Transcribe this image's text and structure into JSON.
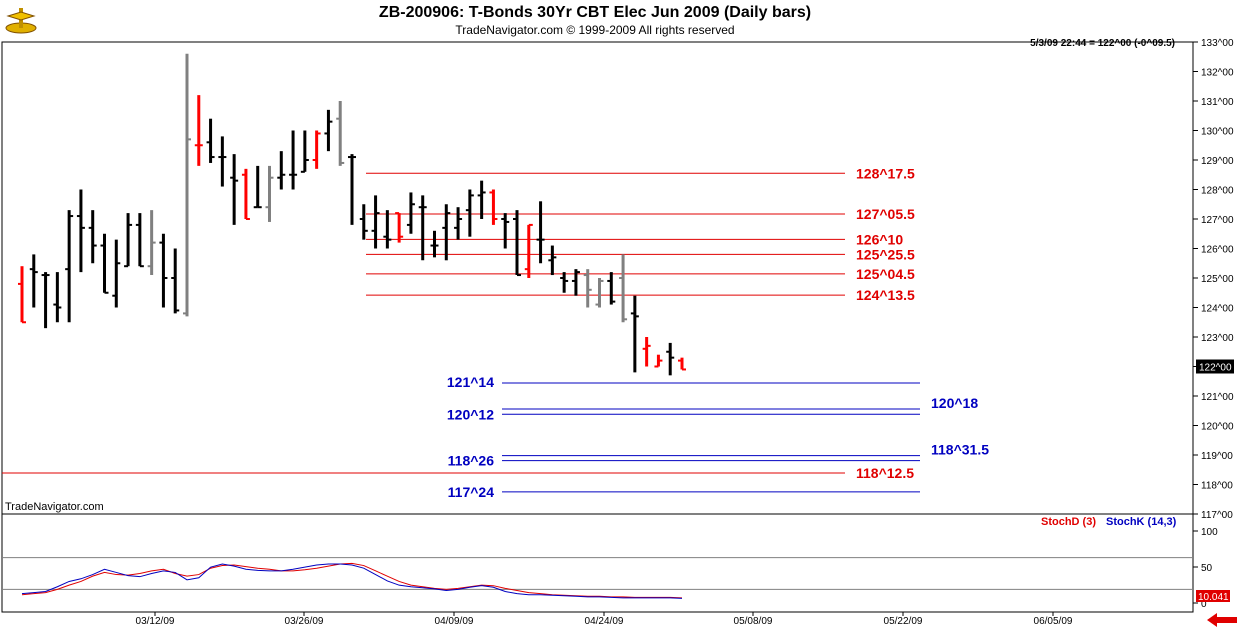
{
  "header": {
    "title": "ZB-200906:  T-Bonds 30Yr CBT Elec Jun 2009  (Daily bars)",
    "subtitle": "TradeNavigator.com © 1999-2009 All rights reserved",
    "info": "5/3/09 22:44 = 122^00 (-0^09.5)"
  },
  "watermark": "TradeNavigator.com",
  "colors": {
    "up": "#000000",
    "down": "#ff0000",
    "neutral": "#808080",
    "red_line": "#e00000",
    "blue_line": "#0000c0"
  },
  "chart_data": {
    "type": "ohlc",
    "price_axis": {
      "min": 117,
      "max": 133,
      "ticks": [
        "133^00",
        "132^00",
        "131^00",
        "130^00",
        "129^00",
        "128^00",
        "127^00",
        "126^00",
        "125^00",
        "124^00",
        "123^00",
        "122^00",
        "121^00",
        "120^00",
        "119^00",
        "118^00",
        "117^00"
      ],
      "current": "122^00"
    },
    "x_ticks": [
      "03/12/09",
      "03/26/09",
      "04/09/09",
      "04/24/09",
      "05/08/09",
      "05/22/09",
      "06/05/09"
    ],
    "bars": [
      {
        "o": 124.8,
        "h": 125.4,
        "l": 123.5,
        "c": 123.5,
        "col": "down"
      },
      {
        "o": 125.3,
        "h": 125.8,
        "l": 124.0,
        "c": 125.2,
        "col": "up"
      },
      {
        "o": 125.1,
        "h": 125.2,
        "l": 123.3,
        "c": 125.1,
        "col": "up"
      },
      {
        "o": 124.1,
        "h": 125.2,
        "l": 123.5,
        "c": 124.0,
        "col": "up"
      },
      {
        "o": 125.3,
        "h": 127.3,
        "l": 123.5,
        "c": 127.1,
        "col": "up"
      },
      {
        "o": 127.1,
        "h": 128.0,
        "l": 125.2,
        "c": 126.7,
        "col": "up"
      },
      {
        "o": 126.7,
        "h": 127.3,
        "l": 125.5,
        "c": 126.1,
        "col": "up"
      },
      {
        "o": 126.1,
        "h": 126.5,
        "l": 124.5,
        "c": 124.5,
        "col": "up"
      },
      {
        "o": 124.4,
        "h": 126.3,
        "l": 124.0,
        "c": 125.5,
        "col": "up"
      },
      {
        "o": 125.4,
        "h": 127.2,
        "l": 125.4,
        "c": 126.8,
        "col": "up"
      },
      {
        "o": 126.8,
        "h": 127.2,
        "l": 125.4,
        "c": 125.4,
        "col": "up"
      },
      {
        "o": 125.4,
        "h": 127.3,
        "l": 125.1,
        "c": 126.2,
        "col": "neutral"
      },
      {
        "o": 126.2,
        "h": 126.5,
        "l": 124.0,
        "c": 125.0,
        "col": "up"
      },
      {
        "o": 125.0,
        "h": 126.0,
        "l": 123.8,
        "c": 123.9,
        "col": "up"
      },
      {
        "o": 123.8,
        "h": 132.6,
        "l": 123.7,
        "c": 129.7,
        "col": "neutral"
      },
      {
        "o": 129.5,
        "h": 131.2,
        "l": 128.8,
        "c": 129.5,
        "col": "down"
      },
      {
        "o": 129.6,
        "h": 130.4,
        "l": 128.9,
        "c": 129.1,
        "col": "up"
      },
      {
        "o": 129.1,
        "h": 129.8,
        "l": 128.1,
        "c": 129.1,
        "col": "up"
      },
      {
        "o": 128.4,
        "h": 129.2,
        "l": 126.8,
        "c": 128.3,
        "col": "up"
      },
      {
        "o": 128.5,
        "h": 128.7,
        "l": 127.0,
        "c": 127.0,
        "col": "down"
      },
      {
        "o": 127.4,
        "h": 128.8,
        "l": 127.4,
        "c": 127.4,
        "col": "up"
      },
      {
        "o": 127.4,
        "h": 128.8,
        "l": 126.9,
        "c": 128.4,
        "col": "neutral"
      },
      {
        "o": 128.4,
        "h": 129.3,
        "l": 128.0,
        "c": 128.5,
        "col": "up"
      },
      {
        "o": 128.5,
        "h": 130.0,
        "l": 128.0,
        "c": 128.5,
        "col": "up"
      },
      {
        "o": 128.6,
        "h": 130.0,
        "l": 128.6,
        "c": 129.0,
        "col": "up"
      },
      {
        "o": 129.0,
        "h": 130.0,
        "l": 128.7,
        "c": 129.9,
        "col": "down"
      },
      {
        "o": 129.9,
        "h": 130.7,
        "l": 129.3,
        "c": 130.3,
        "col": "up"
      },
      {
        "o": 130.4,
        "h": 131.0,
        "l": 128.8,
        "c": 128.9,
        "col": "neutral"
      },
      {
        "o": 129.1,
        "h": 129.2,
        "l": 126.8,
        "c": 129.1,
        "col": "up"
      },
      {
        "o": 127.0,
        "h": 127.5,
        "l": 126.3,
        "c": 126.6,
        "col": "up"
      },
      {
        "o": 126.6,
        "h": 127.8,
        "l": 126.0,
        "c": 127.2,
        "col": "up"
      },
      {
        "o": 126.4,
        "h": 127.3,
        "l": 126.0,
        "c": 126.3,
        "col": "up"
      },
      {
        "o": 127.2,
        "h": 127.2,
        "l": 126.2,
        "c": 126.4,
        "col": "down"
      },
      {
        "o": 126.8,
        "h": 127.9,
        "l": 126.5,
        "c": 127.5,
        "col": "up"
      },
      {
        "o": 127.4,
        "h": 127.8,
        "l": 125.6,
        "c": 127.4,
        "col": "up"
      },
      {
        "o": 126.1,
        "h": 126.6,
        "l": 125.7,
        "c": 126.1,
        "col": "up"
      },
      {
        "o": 126.7,
        "h": 127.5,
        "l": 125.6,
        "c": 127.2,
        "col": "up"
      },
      {
        "o": 126.7,
        "h": 127.4,
        "l": 126.3,
        "c": 127.0,
        "col": "up"
      },
      {
        "o": 127.3,
        "h": 128.0,
        "l": 126.4,
        "c": 127.8,
        "col": "up"
      },
      {
        "o": 127.8,
        "h": 128.3,
        "l": 127.0,
        "c": 127.9,
        "col": "up"
      },
      {
        "o": 127.9,
        "h": 128.0,
        "l": 126.8,
        "c": 127.0,
        "col": "down"
      },
      {
        "o": 127.0,
        "h": 127.2,
        "l": 126.0,
        "c": 126.9,
        "col": "up"
      },
      {
        "o": 127.0,
        "h": 127.3,
        "l": 125.1,
        "c": 125.1,
        "col": "up"
      },
      {
        "o": 125.3,
        "h": 126.8,
        "l": 125.0,
        "c": 126.8,
        "col": "down"
      },
      {
        "o": 126.3,
        "h": 127.6,
        "l": 125.5,
        "c": 126.3,
        "col": "up"
      },
      {
        "o": 125.6,
        "h": 126.1,
        "l": 125.1,
        "c": 125.7,
        "col": "up"
      },
      {
        "o": 125.0,
        "h": 125.2,
        "l": 124.5,
        "c": 124.9,
        "col": "up"
      },
      {
        "o": 124.9,
        "h": 125.3,
        "l": 124.4,
        "c": 125.2,
        "col": "up"
      },
      {
        "o": 125.1,
        "h": 125.3,
        "l": 124.0,
        "c": 124.6,
        "col": "neutral"
      },
      {
        "o": 124.1,
        "h": 125.0,
        "l": 124.0,
        "c": 124.9,
        "col": "neutral"
      },
      {
        "o": 124.9,
        "h": 125.2,
        "l": 124.1,
        "c": 124.2,
        "col": "up"
      },
      {
        "o": 125.0,
        "h": 125.8,
        "l": 123.5,
        "c": 123.6,
        "col": "neutral"
      },
      {
        "o": 123.8,
        "h": 124.4,
        "l": 121.8,
        "c": 123.7,
        "col": "up"
      },
      {
        "o": 122.6,
        "h": 123.0,
        "l": 122.0,
        "c": 122.7,
        "col": "down"
      },
      {
        "o": 122.0,
        "h": 122.4,
        "l": 122.0,
        "c": 122.2,
        "col": "down"
      },
      {
        "o": 122.5,
        "h": 122.8,
        "l": 121.7,
        "c": 122.3,
        "col": "up"
      },
      {
        "o": 122.2,
        "h": 122.3,
        "l": 121.9,
        "c": 121.9,
        "col": "down"
      }
    ],
    "levels": [
      {
        "price": 128.55,
        "label": "128^17.5",
        "color": "red",
        "x_from": 0.2,
        "x_to": 0.66,
        "label_side": "right"
      },
      {
        "price": 127.17,
        "label": "127^05.5",
        "color": "red",
        "x_from": 0.2,
        "x_to": 0.66,
        "label_side": "right"
      },
      {
        "price": 126.31,
        "label": "126^10",
        "color": "red",
        "x_from": 0.2,
        "x_to": 0.66,
        "label_side": "right"
      },
      {
        "price": 125.8,
        "label": "125^25.5",
        "color": "red",
        "x_from": 0.2,
        "x_to": 0.66,
        "label_side": "right"
      },
      {
        "price": 125.14,
        "label": "125^04.5",
        "color": "red",
        "x_from": 0.2,
        "x_to": 0.66,
        "label_side": "right"
      },
      {
        "price": 124.42,
        "label": "124^13.5",
        "color": "red",
        "x_from": 0.2,
        "x_to": 0.66,
        "label_side": "right"
      },
      {
        "price": 121.44,
        "label": "121^14",
        "color": "blue",
        "x_from": 0.3,
        "x_to": 0.8,
        "label_side": "left"
      },
      {
        "price": 120.56,
        "label": "120^18",
        "color": "blue",
        "x_from": 0.3,
        "x_to": 0.8,
        "label_side": "rightfar"
      },
      {
        "price": 120.38,
        "label": "120^12",
        "color": "blue",
        "x_from": 0.3,
        "x_to": 0.8,
        "label_side": "left"
      },
      {
        "price": 118.98,
        "label": "118^31.5",
        "color": "blue",
        "x_from": 0.3,
        "x_to": 0.8,
        "label_side": "rightfar"
      },
      {
        "price": 118.81,
        "label": "118^26",
        "color": "blue",
        "x_from": 0.3,
        "x_to": 0.8,
        "label_side": "left"
      },
      {
        "price": 118.39,
        "label": "118^12.5",
        "color": "red",
        "x_from": 0.0,
        "x_to": 0.66,
        "label_side": "right"
      },
      {
        "price": 117.75,
        "label": "117^24",
        "color": "blue",
        "x_from": 0.3,
        "x_to": 0.8,
        "label_side": "left"
      }
    ],
    "stoch": {
      "legend_d": "StochD (3)",
      "legend_k": "StochK (14,3)",
      "ticks": [
        "100",
        "50",
        "0"
      ],
      "current": "10.041",
      "d": [
        10,
        12,
        14,
        20,
        28,
        35,
        45,
        52,
        48,
        47,
        50,
        55,
        58,
        50,
        45,
        48,
        60,
        65,
        66,
        63,
        60,
        58,
        55,
        55,
        57,
        60,
        64,
        68,
        69,
        65,
        55,
        45,
        35,
        28,
        25,
        22,
        20,
        22,
        25,
        28,
        27,
        22,
        18,
        14,
        12,
        10,
        9,
        8,
        7,
        7,
        6,
        6,
        5,
        5,
        5,
        5,
        4
      ],
      "k": [
        12,
        14,
        16,
        25,
        35,
        40,
        48,
        58,
        52,
        46,
        44,
        50,
        55,
        52,
        38,
        42,
        62,
        68,
        64,
        58,
        56,
        55,
        55,
        58,
        62,
        66,
        68,
        68,
        66,
        60,
        48,
        36,
        28,
        25,
        23,
        21,
        18,
        20,
        24,
        27,
        24,
        16,
        12,
        10,
        10,
        9,
        8,
        7,
        6,
        6,
        5,
        4,
        4,
        4,
        4,
        4,
        3
      ]
    }
  }
}
